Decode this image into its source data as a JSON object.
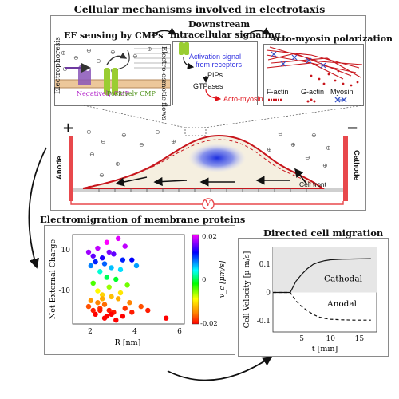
{
  "main_title": "Cellular mechanisms involved in electrotaxis",
  "ef_sensing": {
    "title": "EF sensing by CMPs",
    "electrophoresis": "Electrophoresis",
    "electroosmotic": "Electro-osmotic flows",
    "negative_cmp": "Negatively CMP",
    "positive_cmp": "Positively CMP"
  },
  "signaling": {
    "title_line1": "Downstream",
    "title_line2": "intracellular signaling",
    "activation_line1": "Activation signal",
    "activation_line2": "from receptors",
    "pips": "PIPs",
    "gtpases": "GTPases",
    "actomyosin": "Acto-myosin"
  },
  "polarization": {
    "title": "Acto-myosin polarization",
    "factin": "F-actin",
    "gactin": "G-actin",
    "myosin": "Myosin"
  },
  "cell": {
    "plus_sign": "+",
    "minus_sign": "−",
    "anode": "Anode",
    "cathode": "Cathode",
    "cell_front": "Cell front",
    "voltage_symbol": "V"
  },
  "electromigration": {
    "title": "Electromigration of membrane proteins",
    "ylabel": "Net External Charge",
    "xlabel": "R [nm]",
    "colorbar_label": "v_c  [μm/s]",
    "colorbar_ticks": [
      "0.02",
      "0",
      "-0.02"
    ],
    "x_ticks": [
      "2",
      "4",
      "6"
    ],
    "y_ticks": [
      "10",
      "-10"
    ]
  },
  "migration": {
    "title": "Directed cell migration",
    "ylabel": "Cell Velocity [μ m/s]",
    "xlabel": "t [min]",
    "cathodal": "Cathodal",
    "anodal": "Anodal",
    "x_ticks": [
      "5",
      "10",
      "15"
    ],
    "y_ticks": [
      "0.1",
      "0",
      "-0.1"
    ]
  },
  "colors": {
    "electrode": "#e8484c",
    "membrane_red": "#c8161d",
    "arrow_black": "#111111",
    "activation_blue": "#2d2de0",
    "acto_red": "#e0141c"
  },
  "chart_data": [
    {
      "type": "scatter",
      "title": "Electromigration of membrane proteins",
      "xlabel": "R [nm]",
      "ylabel": "Net External Charge",
      "xlim": [
        1.3,
        6.2
      ],
      "ylim": [
        -25,
        21
      ],
      "colorbar": {
        "label": "v_c [μm/s]",
        "range": [
          -0.02,
          0.02
        ]
      },
      "x": [
        2.8,
        3.3,
        2.4,
        2.0,
        3.6,
        2.9,
        2.2,
        3.1,
        2.6,
        3.9,
        2.3,
        3.5,
        2.7,
        2.1,
        3.0,
        3.4,
        2.5,
        4.1,
        2.8,
        3.2,
        2.2,
        2.9,
        3.7,
        2.4,
        2.6,
        3.0,
        3.3,
        2.1,
        3.8,
        2.7,
        4.3,
        2.5,
        2.0,
        2.9,
        3.6,
        3.1,
        2.3,
        2.8,
        4.6,
        5.4,
        2.6,
        3.4,
        2.4,
        3.9,
        2.2,
        3.0,
        2.7,
        3.2,
        2.5,
        3.5
      ],
      "y": [
        17,
        19,
        14,
        12,
        15,
        12,
        10,
        11,
        9,
        8,
        7,
        8,
        6,
        5,
        4,
        3,
        2,
        5,
        -1,
        -2,
        -4,
        -6,
        -5,
        -8,
        -10,
        -11,
        -12,
        -13,
        -14,
        -15,
        -16,
        -17,
        -16,
        -18,
        -17,
        -19,
        -20,
        -21,
        -18,
        -22,
        -12,
        -9,
        -14,
        -19,
        -18,
        -20,
        -22,
        -23,
        -18,
        -21
      ],
      "v": [
        0.02,
        0.019,
        0.018,
        0.017,
        0.018,
        0.016,
        0.015,
        0.015,
        0.013,
        0.012,
        0.011,
        0.011,
        0.009,
        0.008,
        0.006,
        0.005,
        0.003,
        0.007,
        0.0,
        -0.001,
        -0.004,
        -0.006,
        -0.005,
        -0.009,
        -0.011,
        -0.012,
        -0.013,
        -0.014,
        -0.015,
        -0.016,
        -0.017,
        -0.018,
        -0.017,
        -0.019,
        -0.018,
        -0.019,
        -0.02,
        -0.02,
        -0.019,
        -0.02,
        -0.013,
        -0.01,
        -0.015,
        -0.019,
        -0.019,
        -0.02,
        -0.02,
        -0.02,
        -0.019,
        -0.02
      ]
    },
    {
      "type": "line",
      "title": "Directed cell migration",
      "xlabel": "t [min]",
      "ylabel": "Cell Velocity [μ m/s]",
      "xlim": [
        0,
        18
      ],
      "ylim": [
        -0.14,
        0.16
      ],
      "series": [
        {
          "name": "Cathodal",
          "style": "solid",
          "x": [
            0,
            3,
            3.5,
            4,
            5,
            6,
            7,
            8,
            9,
            10,
            12,
            14,
            17
          ],
          "y": [
            0,
            0,
            0.02,
            0.04,
            0.065,
            0.085,
            0.1,
            0.108,
            0.113,
            0.116,
            0.118,
            0.119,
            0.12
          ]
        },
        {
          "name": "Anodal",
          "style": "dashed",
          "x": [
            0,
            3,
            3.5,
            4,
            5,
            6,
            7,
            8,
            9,
            10,
            12,
            14,
            17
          ],
          "y": [
            0,
            0,
            -0.015,
            -0.03,
            -0.05,
            -0.065,
            -0.078,
            -0.087,
            -0.092,
            -0.095,
            -0.097,
            -0.098,
            -0.098
          ]
        }
      ]
    }
  ]
}
